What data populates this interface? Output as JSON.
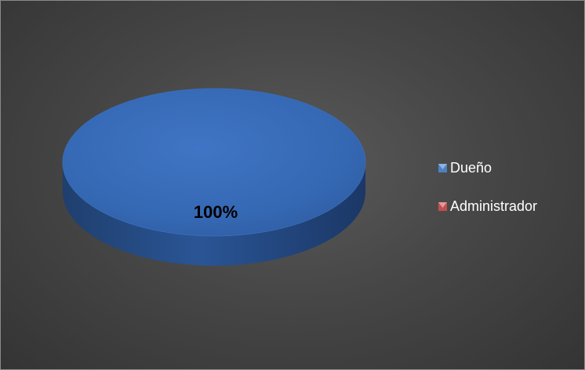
{
  "chart_data": {
    "type": "pie",
    "title": "",
    "style": "3d",
    "legend_position": "right",
    "series": [
      {
        "values": [
          100,
          0
        ]
      }
    ],
    "categories": [
      "Dueño",
      "Administrador"
    ],
    "data_labels": [
      "100%"
    ],
    "colors": [
      "#4f81bd",
      "#c0504d"
    ]
  },
  "colors": {
    "background": "#404040",
    "legend_text": "#ffffff",
    "data_label_text": "#000000"
  }
}
